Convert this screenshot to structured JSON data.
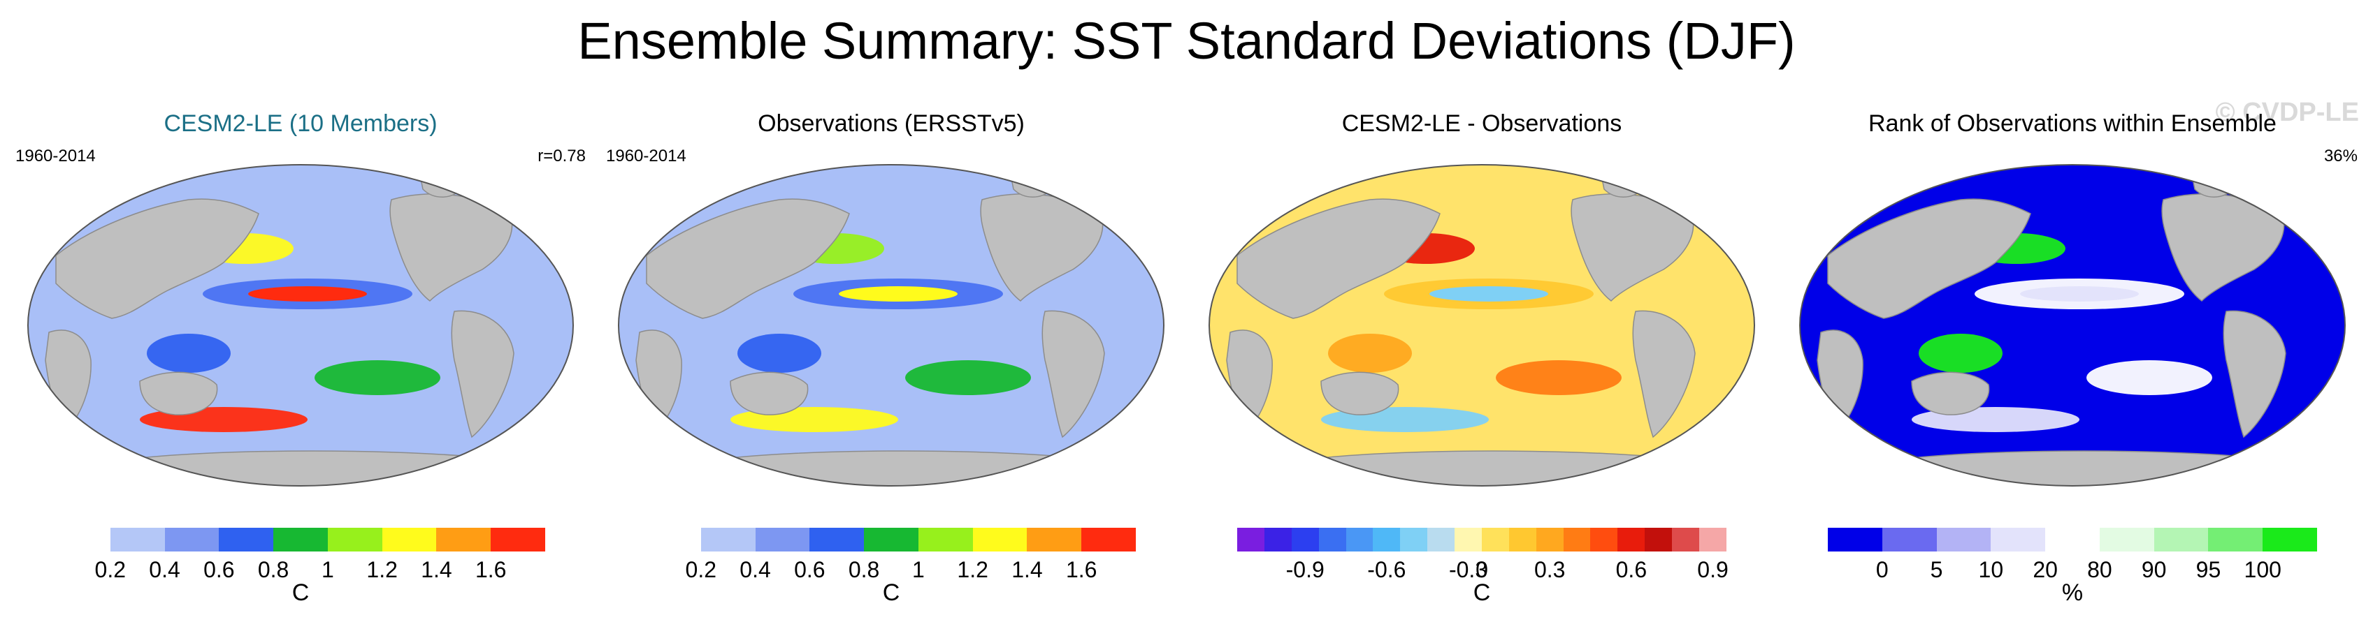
{
  "title": "Ensemble Summary: SST Standard Deviations (DJF)",
  "watermark": "© CVDP-LE",
  "panels": [
    {
      "title": "CESM2-LE (10 Members)",
      "period": "1960-2014",
      "stat": "r=0.78",
      "unit": "C",
      "colorbar": [
        "#ffffff",
        "#b4c7f7",
        "#7d97f2",
        "#2f61f0",
        "#17b832",
        "#97f01c",
        "#fffb1c",
        "#ff9d14",
        "#ff2b0f"
      ],
      "ticks": [
        "0.2",
        "0.4",
        "0.6",
        "0.8",
        "1",
        "1.2",
        "1.4",
        "1.6"
      ],
      "ocean": "#a9bff7",
      "blobs": [
        "#4a72f2",
        "#2f61f0",
        "#17b832",
        "#fffb1c",
        "#ff2b0f"
      ]
    },
    {
      "title": "Observations (ERSSTv5)",
      "period": "1960-2014",
      "stat": "",
      "unit": "C",
      "colorbar": [
        "#ffffff",
        "#b4c7f7",
        "#7d97f2",
        "#2f61f0",
        "#17b832",
        "#97f01c",
        "#fffb1c",
        "#ff9d14",
        "#ff2b0f"
      ],
      "ticks": [
        "0.2",
        "0.4",
        "0.6",
        "0.8",
        "1",
        "1.2",
        "1.4",
        "1.6"
      ],
      "ocean": "#a9bff7",
      "blobs": [
        "#4a72f2",
        "#2f61f0",
        "#17b832",
        "#97f01c",
        "#fffb1c"
      ]
    },
    {
      "title": "CESM2-LE - Observations",
      "period": "",
      "stat": "",
      "unit": "C",
      "colorbar": [
        "#7a1ee0",
        "#3b22e6",
        "#2c3ff0",
        "#3a6ff2",
        "#4a97f5",
        "#4fb8f7",
        "#7fd0f5",
        "#b9dcef",
        "#fff7b0",
        "#ffe15a",
        "#ffc830",
        "#ffa81f",
        "#ff7c14",
        "#ff4d0f",
        "#e81c0c",
        "#c2100c",
        "#de4b4b",
        "#f5a7a7"
      ],
      "ticks": [
        "-0.9",
        "-0.6",
        "-0.3",
        "0",
        "0.3",
        "0.6",
        "0.9"
      ],
      "ocean": "#ffe36b",
      "blobs": [
        "#ffc830",
        "#ffa81f",
        "#ff7c14",
        "#e81c0c",
        "#7fd0f5"
      ]
    },
    {
      "title": "Rank of Observations within Ensemble",
      "period": "",
      "stat": "36%",
      "unit": "%",
      "colorbar": [
        "#0000e8",
        "#6a6af0",
        "#b3b3f5",
        "#e3e3fb",
        "#ffffff",
        "#e3fbe3",
        "#b4f5b4",
        "#74ee74",
        "#1aea1a"
      ],
      "ticks": [
        "0",
        "5",
        "10",
        "20",
        "80",
        "90",
        "95",
        "100"
      ],
      "ocean": "#0000e8",
      "blobs": [
        "#ffffff",
        "#1aea1a",
        "#ffffff",
        "#1aea1a",
        "#e3e3fb"
      ]
    }
  ]
}
